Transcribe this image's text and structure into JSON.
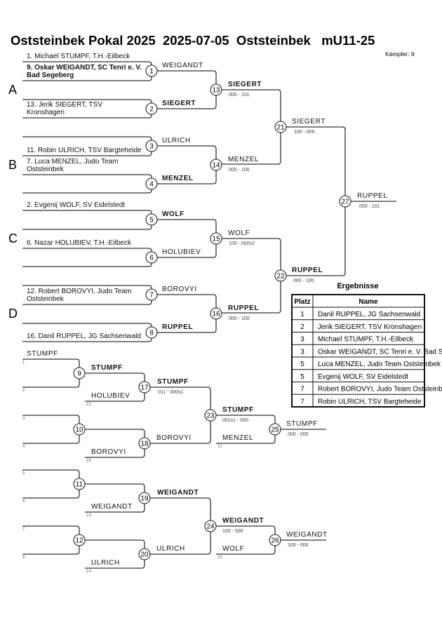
{
  "header": {
    "title": "Oststeinbek Pokal 2025  2025-07-05  Oststeinbek   mU11-25",
    "fighters": "Kämpfer: 9"
  },
  "main": {
    "pools": [
      {
        "letter": "A",
        "slots": [
          {
            "text": "1. Michael STUMPF, T.H.-Eilbeck",
            "bold": false
          },
          {
            "text": "9. Oskar WEIGANDT, SC Tenri e. V. Bad Segeberg",
            "bold": true
          },
          {
            "text": "",
            "bold": false
          },
          {
            "text": "13. Jerik SIEGERT, TSV Kronshagen",
            "bold": false
          }
        ],
        "matches": [
          {
            "no": "1",
            "winner": "WEIGANDT",
            "bold": false
          },
          {
            "no": "2",
            "winner": "SIEGERT",
            "bold": true
          }
        ],
        "pool_match": {
          "no": "13",
          "winner": "SIEGERT",
          "bold": true,
          "score": "000 - 101"
        }
      },
      {
        "letter": "B",
        "slots": [
          {
            "text": "",
            "bold": false
          },
          {
            "text": "11. Robin ULRICH, TSV Bargteheide",
            "bold": false
          },
          {
            "text": "7. Luca MENZEL, Judo Team Oststeinbek",
            "bold": false
          },
          {
            "text": "",
            "bold": false
          }
        ],
        "matches": [
          {
            "no": "3",
            "winner": "ULRICH",
            "bold": false
          },
          {
            "no": "4",
            "winner": "MENZEL",
            "bold": true
          }
        ],
        "pool_match": {
          "no": "14",
          "winner": "MENZEL",
          "bold": false,
          "score": "000 - 100"
        }
      },
      {
        "letter": "C",
        "slots": [
          {
            "text": "2. Evgenij WOLF, SV Eidelstedt",
            "bold": false
          },
          {
            "text": "",
            "bold": false
          },
          {
            "text": "6. Nazar HOLUBIEV, T.H.-Eilbeck",
            "bold": false
          },
          {
            "text": "",
            "bold": false
          }
        ],
        "matches": [
          {
            "no": "5",
            "winner": "WOLF",
            "bold": true
          },
          {
            "no": "6",
            "winner": "HOLUBIEV",
            "bold": false
          }
        ],
        "pool_match": {
          "no": "15",
          "winner": "WOLF",
          "bold": false,
          "score": "100 - 000s2"
        }
      },
      {
        "letter": "D",
        "slots": [
          {
            "text": "",
            "bold": false
          },
          {
            "text": "12. Robert BOROVYI, Judo Team Oststeinbek",
            "bold": false
          },
          {
            "text": "",
            "bold": false
          },
          {
            "text": "16. Danil RUPPEL, JG Sachsenwald",
            "bold": false
          }
        ],
        "matches": [
          {
            "no": "7",
            "winner": "BOROVYI",
            "bold": false
          },
          {
            "no": "8",
            "winner": "RUPPEL",
            "bold": true
          }
        ],
        "pool_match": {
          "no": "16",
          "winner": "RUPPEL",
          "bold": true,
          "score": "000 - 100"
        }
      }
    ],
    "semis": [
      {
        "no": "21",
        "winner": "SIEGERT",
        "bold": false,
        "score": "100 - 000"
      },
      {
        "no": "22",
        "winner": "RUPPEL",
        "bold": true,
        "score": "000 - 100"
      }
    ],
    "final": {
      "no": "27",
      "winner": "RUPPEL",
      "bold": false,
      "score": "000 - 101"
    }
  },
  "repechage": [
    {
      "slots": [
        {
          "name": "STUMPF",
          "ref": "1"
        },
        {
          "name": "",
          "ref": "2"
        },
        {
          "name": "",
          "ref": "3"
        },
        {
          "name": "",
          "ref": "4"
        }
      ],
      "r1": [
        {
          "no": "9",
          "winner": "STUMPF",
          "bold": true
        },
        {
          "no": "10",
          "winner": "",
          "bold": false
        }
      ],
      "incoming": [
        {
          "name": "HOLUBIEV",
          "ref": "15"
        },
        {
          "name": "BOROVYI",
          "ref": "16"
        }
      ],
      "r2": [
        {
          "no": "17",
          "winner": "STUMPF",
          "bold": true,
          "score": "011 - 000s1"
        },
        {
          "no": "18",
          "winner": "BOROVYI",
          "bold": false,
          "score": ""
        }
      ],
      "semi": {
        "no": "23",
        "winner": "STUMPF",
        "bold": true,
        "score": "001s1 - 000"
      },
      "incoming_semi": {
        "name": "MENZEL",
        "ref": "21"
      },
      "final": {
        "no": "25",
        "winner": "STUMPF",
        "bold": false,
        "score": "000 - 000"
      }
    },
    {
      "slots": [
        {
          "name": "",
          "ref": "5"
        },
        {
          "name": "",
          "ref": "6"
        },
        {
          "name": "",
          "ref": "7"
        },
        {
          "name": "",
          "ref": "8"
        }
      ],
      "r1": [
        {
          "no": "11",
          "winner": "",
          "bold": false
        },
        {
          "no": "12",
          "winner": "",
          "bold": false
        }
      ],
      "incoming": [
        {
          "name": "WEIGANDT",
          "ref": "13"
        },
        {
          "name": "ULRICH",
          "ref": "14"
        }
      ],
      "r2": [
        {
          "no": "19",
          "winner": "WEIGANDT",
          "bold": true,
          "score": ""
        },
        {
          "no": "20",
          "winner": "ULRICH",
          "bold": false,
          "score": ""
        }
      ],
      "semi": {
        "no": "24",
        "winner": "WEIGANDT",
        "bold": true,
        "score": "100 - 000"
      },
      "incoming_semi": {
        "name": "WOLF",
        "ref": "22"
      },
      "final": {
        "no": "26",
        "winner": "WEIGANDT",
        "bold": false,
        "score": "100 - 000"
      }
    }
  ],
  "results": {
    "title": "Ergebnisse",
    "headers": [
      "Platz",
      "Name"
    ],
    "rows": [
      {
        "place": "1",
        "name": "Danil RUPPEL, JG Sachsenwald"
      },
      {
        "place": "2",
        "name": "Jerik SIEGERT, TSV Kronshagen"
      },
      {
        "place": "3",
        "name": "Michael STUMPF, T.H.-Eilbeck"
      },
      {
        "place": "3",
        "name": "Oskar WEIGANDT, SC Tenri e. V. Bad Segeberg"
      },
      {
        "place": "5",
        "name": "Luca MENZEL, Judo Team Oststeinbek"
      },
      {
        "place": "5",
        "name": "Evgenij WOLF, SV Eidelstedt"
      },
      {
        "place": "7",
        "name": "Robert BOROVYI, Judo Team Oststeinbek"
      },
      {
        "place": "7",
        "name": "Robin ULRICH, TSV Bargteheide"
      }
    ]
  }
}
